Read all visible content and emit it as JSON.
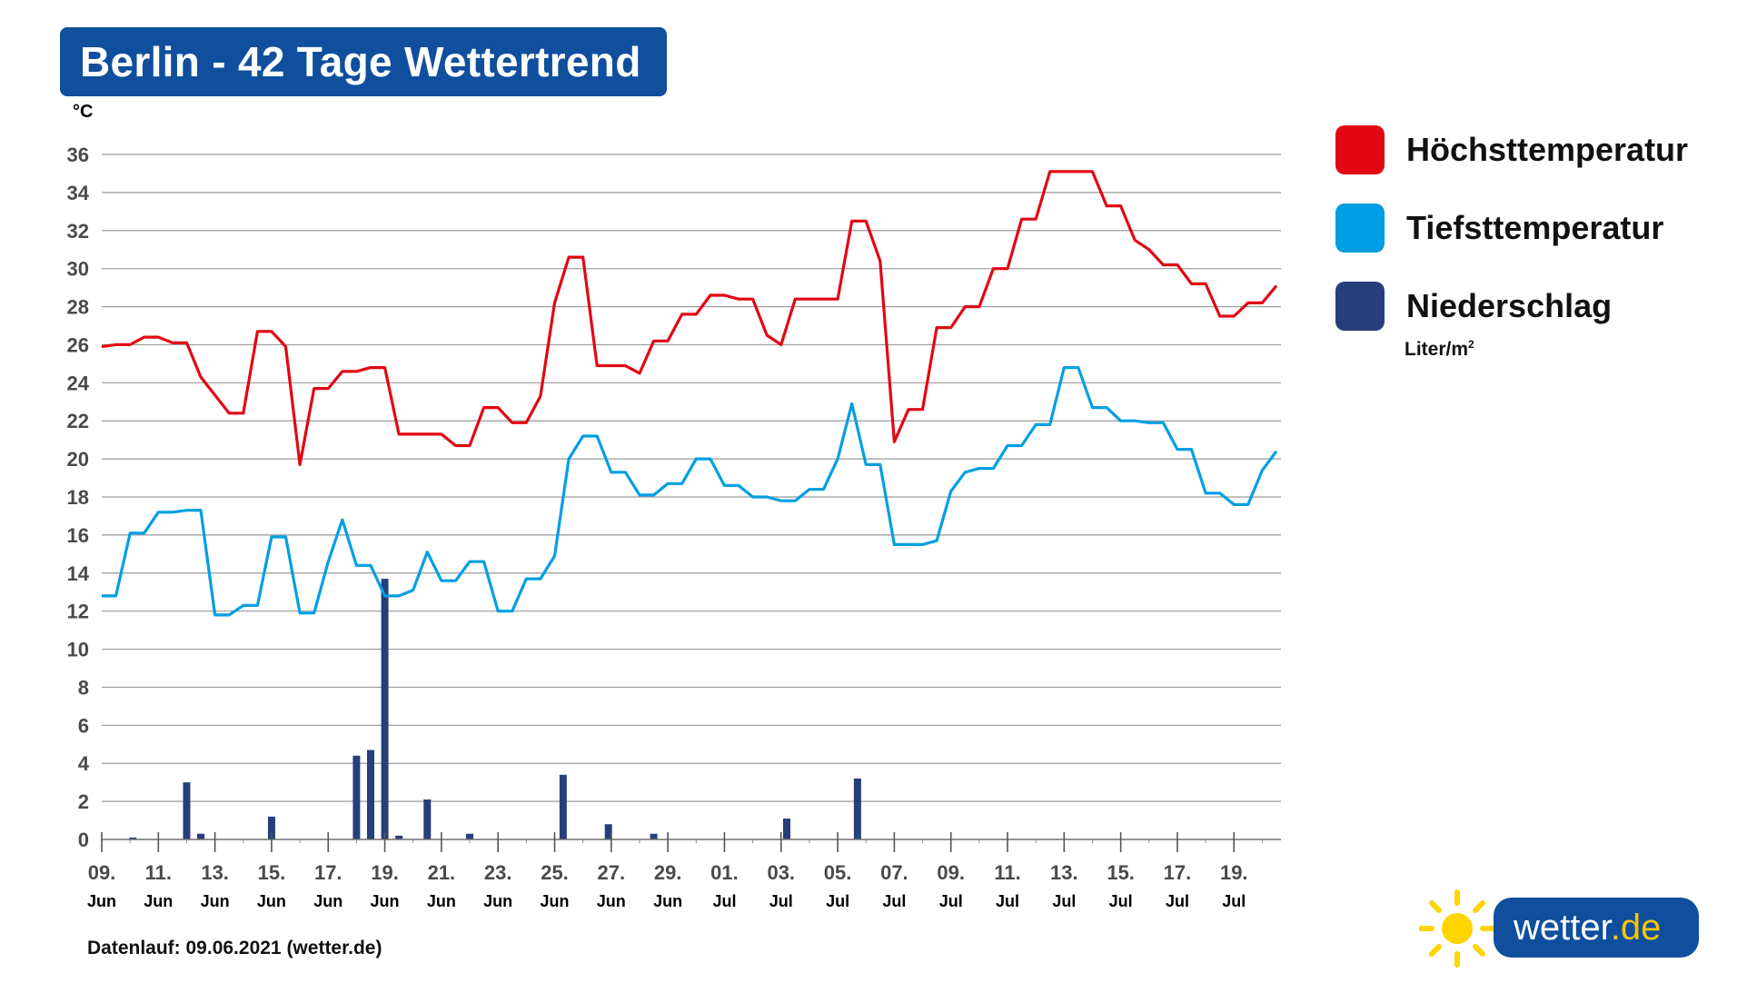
{
  "title": "Berlin - 42 Tage Wettertrend",
  "unit_label": "°C",
  "legend": {
    "items": [
      {
        "label": "Höchsttemperatur",
        "color": "#e30613"
      },
      {
        "label": "Tiefsttemperatur",
        "color": "#009fe3"
      },
      {
        "label": "Niederschlag",
        "color": "#263f7a"
      }
    ],
    "precip_unit": "Liter/m",
    "precip_unit_sup": "2"
  },
  "footnote": "Datenlauf: 09.06.2021 (wetter.de)",
  "logo": {
    "text": "wetter",
    "tld": ".de",
    "sun_color": "#ffd500",
    "brand_color": "#0f4f9e"
  },
  "chart_data": {
    "type": "line",
    "ylim": [
      0,
      36
    ],
    "y_ticks": [
      0,
      2,
      4,
      6,
      8,
      10,
      12,
      14,
      16,
      18,
      20,
      22,
      24,
      26,
      28,
      30,
      32,
      34,
      36
    ],
    "grid": true,
    "legend_position": "right",
    "x_day_range": [
      0,
      41.5
    ],
    "x_ticks": [
      {
        "day": 0,
        "date": "09.",
        "month": "Jun"
      },
      {
        "day": 2,
        "date": "11.",
        "month": "Jun"
      },
      {
        "day": 4,
        "date": "13.",
        "month": "Jun"
      },
      {
        "day": 6,
        "date": "15.",
        "month": "Jun"
      },
      {
        "day": 8,
        "date": "17.",
        "month": "Jun"
      },
      {
        "day": 10,
        "date": "19.",
        "month": "Jun"
      },
      {
        "day": 12,
        "date": "21.",
        "month": "Jun"
      },
      {
        "day": 14,
        "date": "23.",
        "month": "Jun"
      },
      {
        "day": 16,
        "date": "25.",
        "month": "Jun"
      },
      {
        "day": 18,
        "date": "27.",
        "month": "Jun"
      },
      {
        "day": 20,
        "date": "29.",
        "month": "Jun"
      },
      {
        "day": 22,
        "date": "01.",
        "month": "Jul"
      },
      {
        "day": 24,
        "date": "03.",
        "month": "Jul"
      },
      {
        "day": 26,
        "date": "05.",
        "month": "Jul"
      },
      {
        "day": 28,
        "date": "07.",
        "month": "Jul"
      },
      {
        "day": 30,
        "date": "09.",
        "month": "Jul"
      },
      {
        "day": 32,
        "date": "11.",
        "month": "Jul"
      },
      {
        "day": 34,
        "date": "13.",
        "month": "Jul"
      },
      {
        "day": 36,
        "date": "15.",
        "month": "Jul"
      },
      {
        "day": 38,
        "date": "17.",
        "month": "Jul"
      },
      {
        "day": 40,
        "date": "19.",
        "month": "Jul"
      }
    ],
    "series": [
      {
        "name": "Höchsttemperatur",
        "color": "#e30613",
        "points": [
          [
            0,
            25.9
          ],
          [
            0.5,
            26
          ],
          [
            1,
            26
          ],
          [
            1.5,
            26.4
          ],
          [
            2,
            26.4
          ],
          [
            2.5,
            26.1
          ],
          [
            3,
            26.1
          ],
          [
            3.5,
            24.3
          ],
          [
            4.5,
            22.4
          ],
          [
            5,
            22.4
          ],
          [
            5.5,
            26.7
          ],
          [
            6,
            26.7
          ],
          [
            6.5,
            25.9
          ],
          [
            7,
            19.7
          ],
          [
            7.5,
            23.7
          ],
          [
            8,
            23.7
          ],
          [
            8.5,
            24.6
          ],
          [
            9,
            24.6
          ],
          [
            9.5,
            24.8
          ],
          [
            10,
            24.8
          ],
          [
            10.5,
            21.3
          ],
          [
            11,
            21.3
          ],
          [
            12,
            21.3
          ],
          [
            12.5,
            20.7
          ],
          [
            13,
            20.7
          ],
          [
            13.5,
            22.7
          ],
          [
            14,
            22.7
          ],
          [
            14.5,
            21.9
          ],
          [
            15,
            21.9
          ],
          [
            15.5,
            23.3
          ],
          [
            16,
            28.2
          ],
          [
            16.5,
            30.6
          ],
          [
            17,
            30.6
          ],
          [
            17.5,
            24.9
          ],
          [
            18,
            24.9
          ],
          [
            18.5,
            24.9
          ],
          [
            19,
            24.5
          ],
          [
            19.5,
            26.2
          ],
          [
            20,
            26.2
          ],
          [
            20.5,
            27.6
          ],
          [
            21,
            27.6
          ],
          [
            21.5,
            28.6
          ],
          [
            22,
            28.6
          ],
          [
            22.5,
            28.4
          ],
          [
            23,
            28.4
          ],
          [
            23.5,
            26.5
          ],
          [
            24,
            26
          ],
          [
            24.5,
            28.4
          ],
          [
            25,
            28.4
          ],
          [
            26,
            28.4
          ],
          [
            26.5,
            32.5
          ],
          [
            27,
            32.5
          ],
          [
            27.5,
            30.4
          ],
          [
            28,
            20.9
          ],
          [
            28.5,
            22.6
          ],
          [
            29,
            22.6
          ],
          [
            29.5,
            26.9
          ],
          [
            30,
            26.9
          ],
          [
            30.5,
            28
          ],
          [
            31,
            28
          ],
          [
            31.5,
            30
          ],
          [
            32,
            30
          ],
          [
            32.5,
            32.6
          ],
          [
            33,
            32.6
          ],
          [
            33.5,
            35.1
          ],
          [
            34,
            35.1
          ],
          [
            35,
            35.1
          ],
          [
            35.5,
            33.3
          ],
          [
            36,
            33.3
          ],
          [
            36.5,
            31.5
          ],
          [
            37,
            31
          ],
          [
            37.5,
            30.2
          ],
          [
            38,
            30.2
          ],
          [
            38.5,
            29.2
          ],
          [
            39,
            29.2
          ],
          [
            39.5,
            27.5
          ],
          [
            40,
            27.5
          ],
          [
            40.5,
            28.2
          ],
          [
            41,
            28.2
          ],
          [
            41.5,
            29.1
          ]
        ]
      },
      {
        "name": "Tiefsttemperatur",
        "color": "#009fe3",
        "points": [
          [
            0,
            12.8
          ],
          [
            0.5,
            12.8
          ],
          [
            1,
            16.1
          ],
          [
            1.5,
            16.1
          ],
          [
            2,
            17.2
          ],
          [
            2.5,
            17.2
          ],
          [
            3,
            17.3
          ],
          [
            3.5,
            17.3
          ],
          [
            4,
            11.8
          ],
          [
            4.5,
            11.8
          ],
          [
            5,
            12.3
          ],
          [
            5.5,
            12.3
          ],
          [
            6,
            15.9
          ],
          [
            6.5,
            15.9
          ],
          [
            7,
            11.9
          ],
          [
            7.5,
            11.9
          ],
          [
            8,
            14.6
          ],
          [
            8.5,
            16.8
          ],
          [
            9,
            14.4
          ],
          [
            9.5,
            14.4
          ],
          [
            10,
            12.8
          ],
          [
            10.5,
            12.8
          ],
          [
            11,
            13.1
          ],
          [
            11.5,
            15.1
          ],
          [
            12,
            13.6
          ],
          [
            12.5,
            13.6
          ],
          [
            13,
            14.6
          ],
          [
            13.5,
            14.6
          ],
          [
            14,
            12
          ],
          [
            14.5,
            12
          ],
          [
            15,
            13.7
          ],
          [
            15.5,
            13.7
          ],
          [
            16,
            14.9
          ],
          [
            16.5,
            20
          ],
          [
            17,
            21.2
          ],
          [
            17.5,
            21.2
          ],
          [
            18,
            19.3
          ],
          [
            18.5,
            19.3
          ],
          [
            19,
            18.1
          ],
          [
            19.5,
            18.1
          ],
          [
            20,
            18.7
          ],
          [
            20.5,
            18.7
          ],
          [
            21,
            20
          ],
          [
            21.5,
            20
          ],
          [
            22,
            18.6
          ],
          [
            22.5,
            18.6
          ],
          [
            23,
            18
          ],
          [
            23.5,
            18
          ],
          [
            24,
            17.8
          ],
          [
            24.5,
            17.8
          ],
          [
            25,
            18.4
          ],
          [
            25.5,
            18.4
          ],
          [
            26,
            20
          ],
          [
            26.5,
            22.9
          ],
          [
            27,
            19.7
          ],
          [
            27.5,
            19.7
          ],
          [
            28,
            15.5
          ],
          [
            28.5,
            15.5
          ],
          [
            29,
            15.5
          ],
          [
            29.5,
            15.7
          ],
          [
            30,
            18.3
          ],
          [
            30.5,
            19.3
          ],
          [
            31,
            19.5
          ],
          [
            31.5,
            19.5
          ],
          [
            32,
            20.7
          ],
          [
            32.5,
            20.7
          ],
          [
            33,
            21.8
          ],
          [
            33.5,
            21.8
          ],
          [
            34,
            24.8
          ],
          [
            34.5,
            24.8
          ],
          [
            35,
            22.7
          ],
          [
            35.5,
            22.7
          ],
          [
            36,
            22
          ],
          [
            36.5,
            22
          ],
          [
            37,
            21.9
          ],
          [
            37.5,
            21.9
          ],
          [
            38,
            20.5
          ],
          [
            38.5,
            20.5
          ],
          [
            39,
            18.2
          ],
          [
            39.5,
            18.2
          ],
          [
            40,
            17.6
          ],
          [
            40.5,
            17.6
          ],
          [
            41,
            19.4
          ],
          [
            41.5,
            20.4
          ]
        ]
      }
    ],
    "bars": {
      "name": "Niederschlag",
      "color": "#263f7a",
      "unit": "Liter/m²",
      "points": [
        [
          1.1,
          0.1
        ],
        [
          3,
          3
        ],
        [
          3.5,
          0.3
        ],
        [
          6,
          1.2
        ],
        [
          9,
          4.4
        ],
        [
          9.5,
          4.7
        ],
        [
          10,
          13.7
        ],
        [
          10.5,
          0.2
        ],
        [
          11.5,
          2.1
        ],
        [
          13,
          0.3
        ],
        [
          16.3,
          3.4
        ],
        [
          17.9,
          0.8
        ],
        [
          19.5,
          0.3
        ],
        [
          24.2,
          1.1
        ],
        [
          26.7,
          3.2
        ]
      ]
    }
  }
}
